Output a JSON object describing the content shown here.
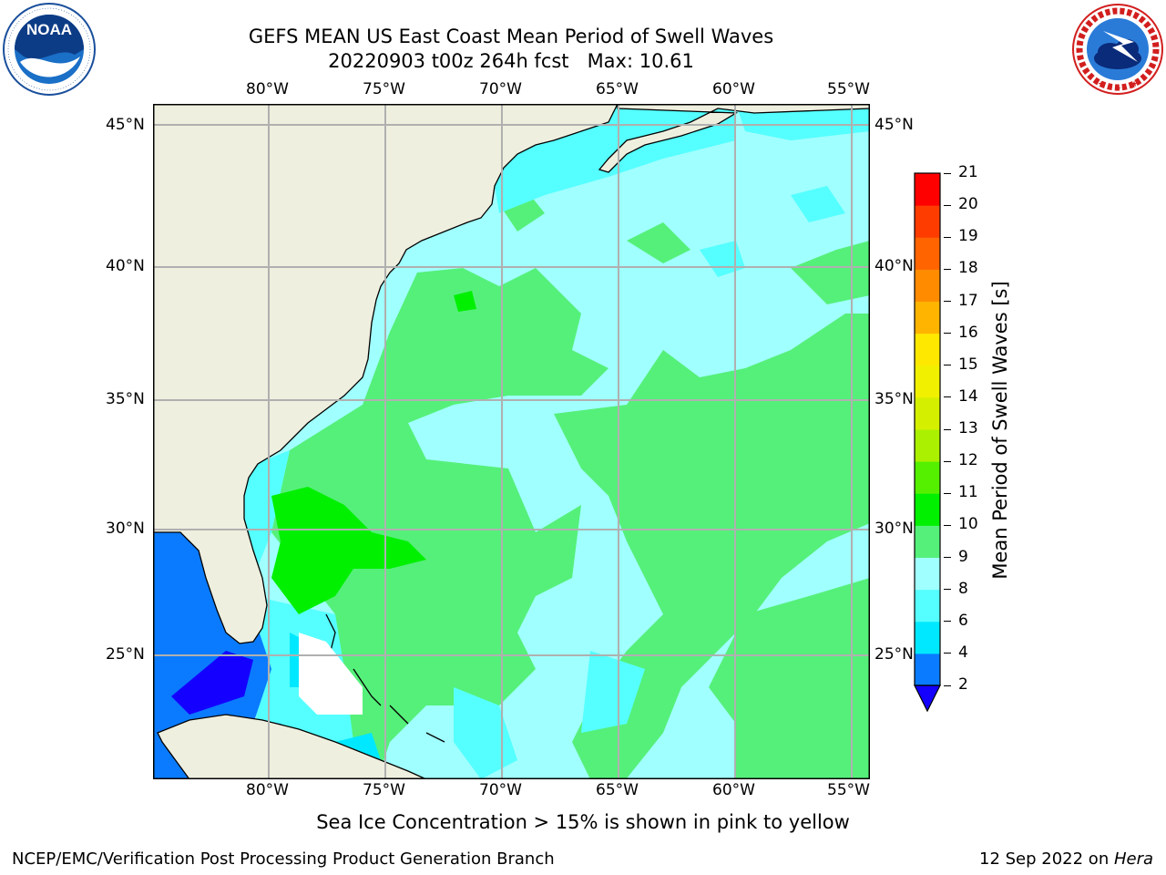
{
  "title": {
    "line1": "GEFS MEAN US East Coast Mean Period of Swell Waves",
    "line2": "20220903 t00z 264h fcst   Max: 10.61"
  },
  "map": {
    "lon_labels": [
      "80°W",
      "75°W",
      "70°W",
      "65°W",
      "60°W",
      "55°W"
    ],
    "lat_labels": [
      "45°N",
      "40°N",
      "35°N",
      "30°N",
      "25°N"
    ],
    "field": "Mean Period of Swell Waves",
    "land_color": "#efefdf",
    "grid_color": "#b0b0b0"
  },
  "colorbar": {
    "label": "Mean Period of Swell Waves [s]",
    "levels": [
      2,
      4,
      6,
      8,
      9,
      10,
      11,
      12,
      13,
      14,
      15,
      16,
      17,
      18,
      19,
      20,
      21
    ],
    "colors": [
      "#0a7bff",
      "#00e8ff",
      "#55ffff",
      "#a0ffff",
      "#55f07a",
      "#00f000",
      "#55f000",
      "#aaf000",
      "#d4f000",
      "#f0f000",
      "#ffe800",
      "#ffb400",
      "#ff8c00",
      "#ff6400",
      "#ff3c00",
      "#ff0000"
    ],
    "under_color": "#1400ff"
  },
  "footnote": "Sea Ice Concentration > 15% is shown in pink to yellow",
  "credit_left": "NCEP/EMC/Verification Post Processing Product Generation Branch",
  "credit_date": "12 Sep 2022 on ",
  "credit_machine": "Hera",
  "logos": {
    "noaa": "NOAA",
    "noaa_ring": "NATIONAL OCEANIC AND ATMOSPHERIC ADMINISTRATION • U.S. DEPARTMENT OF COMMERCE",
    "nws_ring": "NATIONAL WEATHER SERVICE"
  }
}
